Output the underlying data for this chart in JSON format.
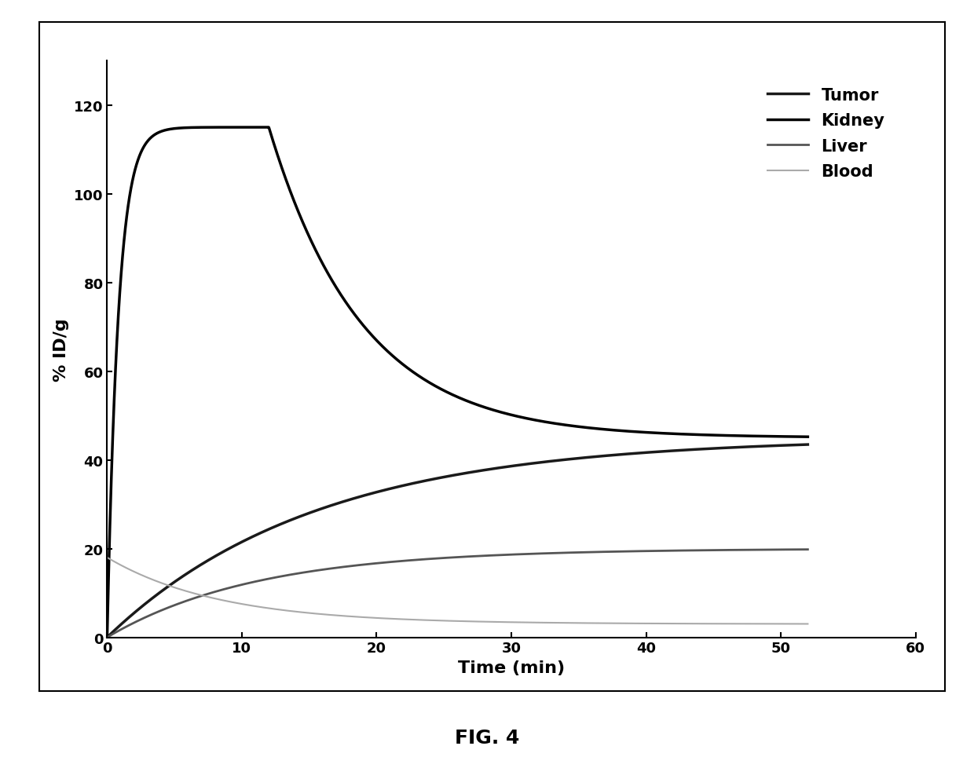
{
  "title": "",
  "xlabel": "Time (min)",
  "ylabel": "% ID/g",
  "xlim": [
    0,
    60
  ],
  "ylim": [
    0,
    130
  ],
  "yticks": [
    0,
    20,
    40,
    60,
    80,
    100,
    120
  ],
  "xticks": [
    0,
    10,
    20,
    30,
    40,
    50,
    60
  ],
  "legend_labels": [
    "Tumor",
    "Kidney",
    "Liver",
    "Blood"
  ],
  "tumor_color": "#1a1a1a",
  "kidney_color": "#000000",
  "liver_color": "#555555",
  "blood_color": "#aaaaaa",
  "tumor_lw": 2.5,
  "kidney_lw": 2.5,
  "liver_lw": 2.0,
  "blood_lw": 1.5,
  "fig_caption": "FIG. 4",
  "background_color": "#ffffff"
}
